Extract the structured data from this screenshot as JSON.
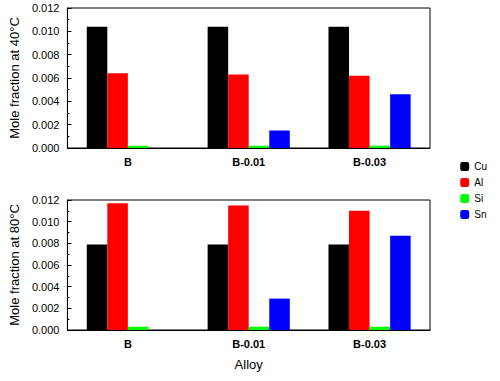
{
  "chart_data": [
    {
      "type": "bar",
      "ylabel": "Mole fraction at 40°C",
      "categories": [
        "B",
        "B-0.01",
        "B-0.03"
      ],
      "series": [
        {
          "name": "Cu",
          "color": "#000000",
          "values": [
            0.0104,
            0.0104,
            0.0104
          ]
        },
        {
          "name": "Al",
          "color": "#ff0000",
          "values": [
            0.0064,
            0.0063,
            0.0062
          ]
        },
        {
          "name": "Si",
          "color": "#00ff00",
          "values": [
            0.0002,
            0.0002,
            0.0002
          ]
        },
        {
          "name": "Sn",
          "color": "#0000ff",
          "values": [
            null,
            0.0015,
            0.0046
          ]
        }
      ],
      "ylim": [
        0,
        0.012
      ],
      "yticks": [
        {
          "value": 0,
          "label": "0.000"
        },
        {
          "value": 0.002,
          "label": "0.002"
        },
        {
          "value": 0.004,
          "label": "0.004"
        },
        {
          "value": 0.006,
          "label": "0.006"
        },
        {
          "value": 0.008,
          "label": "0.008"
        },
        {
          "value": 0.01,
          "label": "0.010"
        },
        {
          "value": 0.012,
          "label": "0.012"
        }
      ],
      "legend": "right"
    },
    {
      "type": "bar",
      "ylabel": "Mole fraction at 80°C",
      "xlabel": "Alloy",
      "categories": [
        "B",
        "B-0.01",
        "B-0.03"
      ],
      "series": [
        {
          "name": "Cu",
          "color": "#000000",
          "values": [
            0.0079,
            0.0079,
            0.0079
          ]
        },
        {
          "name": "Al",
          "color": "#ff0000",
          "values": [
            0.0117,
            0.0115,
            0.011
          ]
        },
        {
          "name": "Si",
          "color": "#00ff00",
          "values": [
            0.0003,
            0.0003,
            0.0003
          ]
        },
        {
          "name": "Sn",
          "color": "#0000ff",
          "values": [
            null,
            0.0029,
            0.0087
          ]
        }
      ],
      "ylim": [
        0,
        0.012
      ],
      "yticks": [
        {
          "value": 0,
          "label": "0.000"
        },
        {
          "value": 0.002,
          "label": "0.002"
        },
        {
          "value": 0.004,
          "label": "0.004"
        },
        {
          "value": 0.006,
          "label": "0.006"
        },
        {
          "value": 0.008,
          "label": "0.008"
        },
        {
          "value": 0.01,
          "label": "0.010"
        },
        {
          "value": 0.012,
          "label": "0.012"
        }
      ]
    }
  ]
}
